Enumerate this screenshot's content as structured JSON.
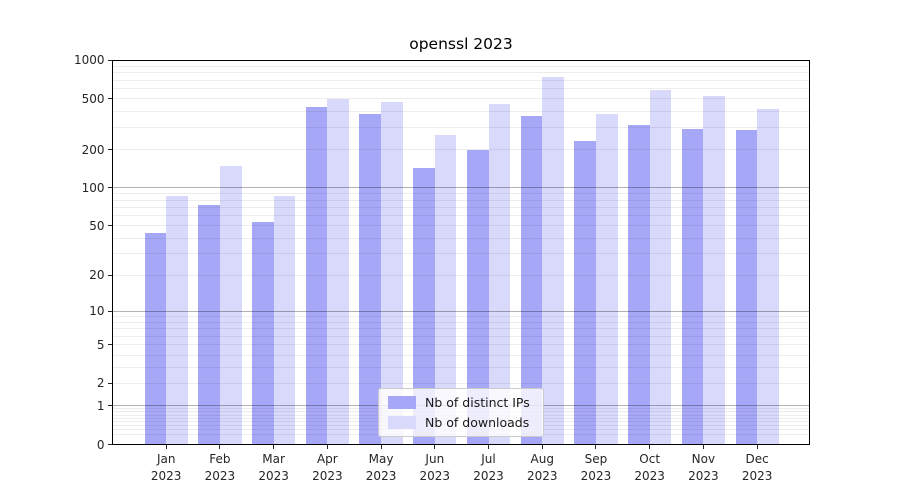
{
  "title": "openssl 2023",
  "chart_data": {
    "type": "bar",
    "title": "openssl 2023",
    "categories": [
      "Jan 2023",
      "Feb 2023",
      "Mar 2023",
      "Apr 2023",
      "May 2023",
      "Jun 2023",
      "Jul 2023",
      "Aug 2023",
      "Sep 2023",
      "Oct 2023",
      "Nov 2023",
      "Dec 2023"
    ],
    "series": [
      {
        "name": "Nb of distinct IPs",
        "color": "#a7a7f8",
        "values": [
          44,
          73,
          54,
          435,
          382,
          144,
          199,
          366,
          236,
          310,
          292,
          284
        ]
      },
      {
        "name": "Nb of downloads",
        "color": "#d9d9fb",
        "values": [
          86,
          150,
          87,
          500,
          475,
          263,
          458,
          740,
          378,
          585,
          525,
          418
        ]
      }
    ],
    "xlabel": "",
    "ylabel": "",
    "yscale": "log1p",
    "ylim": [
      0,
      1000
    ],
    "yticks": [
      0,
      1,
      2,
      5,
      10,
      20,
      50,
      100,
      200,
      500,
      1000
    ],
    "major_decades": [
      1,
      10,
      100,
      1000
    ],
    "grid": true,
    "grid_minor_color": "rgba(0,0,0,0.07)",
    "grid_major_color": "rgba(0,0,0,0.30)",
    "legend_position": "lower center",
    "background_color": "#ffffff",
    "axis_color": "#000000"
  }
}
